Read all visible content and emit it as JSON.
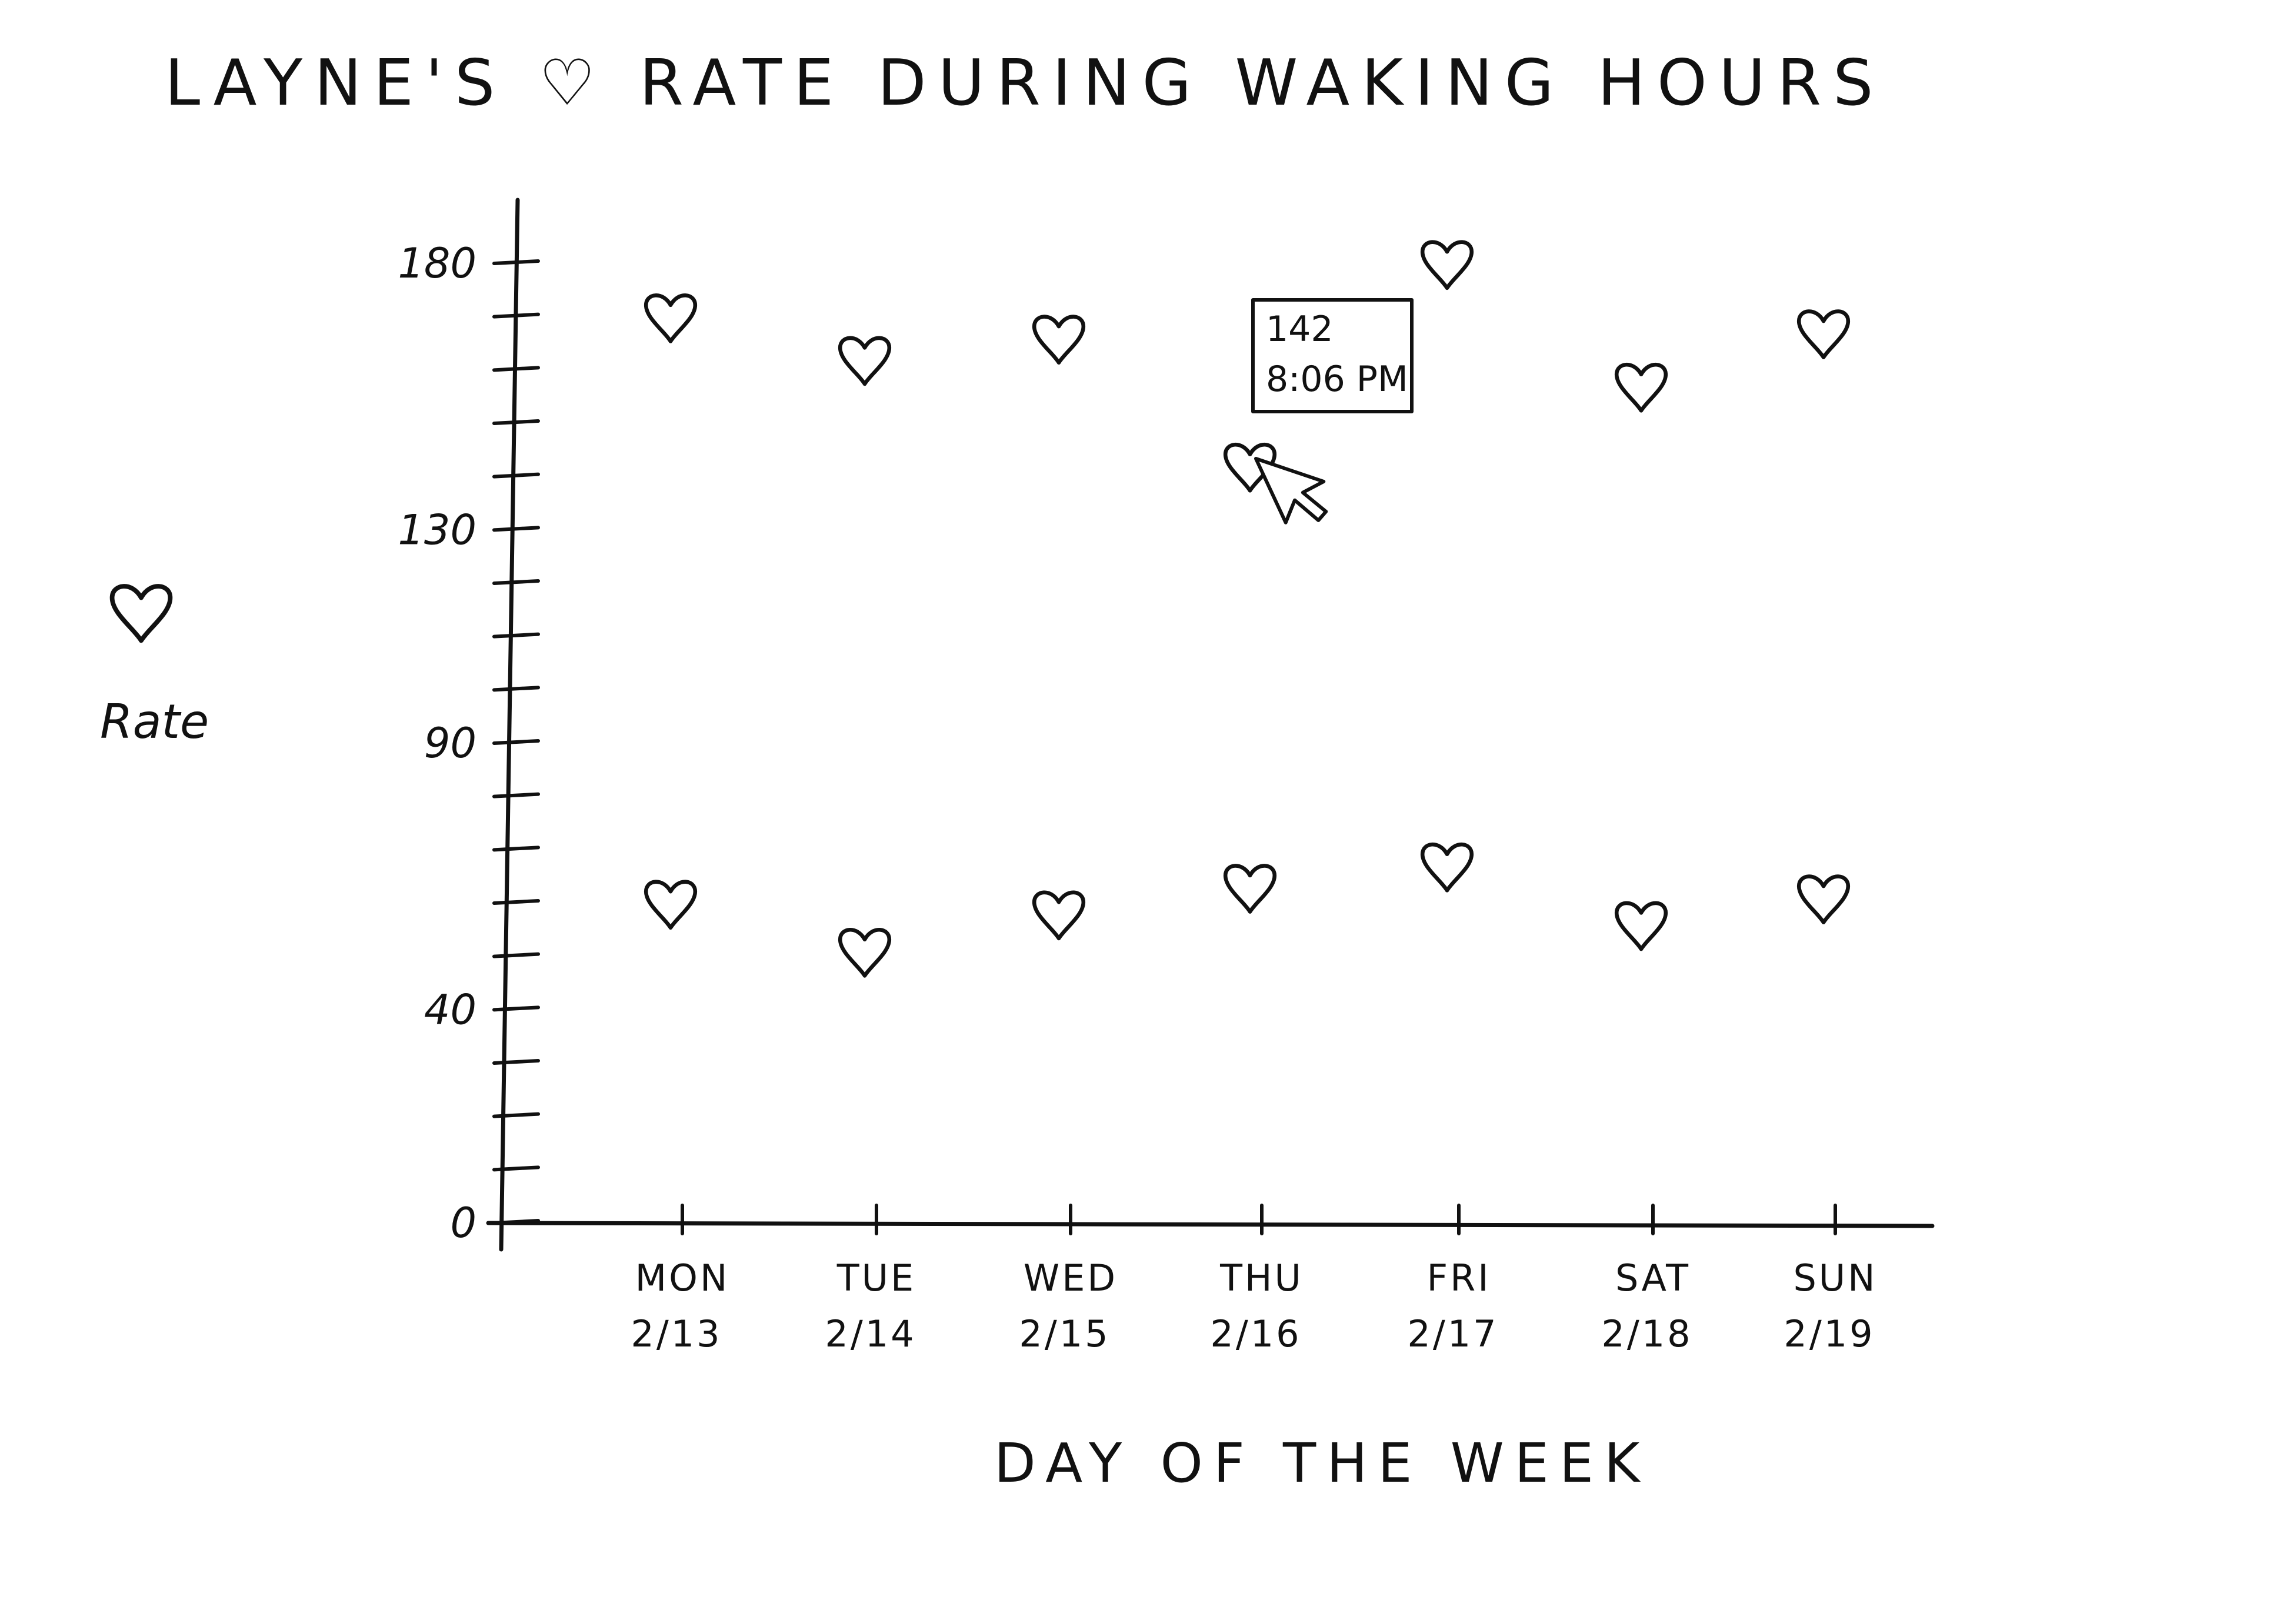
{
  "chart_data": {
    "type": "scatter",
    "title": "LAYNE'S ♡ RATE DURING WAKING HOURS",
    "xlabel": "DAY OF THE WEEK",
    "ylabel_icon": "heart-icon",
    "ylabel": "Rate",
    "ylim": [
      0,
      180
    ],
    "yticks": [
      0,
      40,
      90,
      130,
      180
    ],
    "grid": false,
    "legend": "none",
    "marker": "heart-icon",
    "ink_color": "#111111",
    "categories": [
      {
        "day": "MON",
        "date": "2/13"
      },
      {
        "day": "TUE",
        "date": "2/14"
      },
      {
        "day": "WED",
        "date": "2/15"
      },
      {
        "day": "THU",
        "date": "2/16"
      },
      {
        "day": "FRI",
        "date": "2/17"
      },
      {
        "day": "SAT",
        "date": "2/18"
      },
      {
        "day": "SUN",
        "date": "2/19"
      }
    ],
    "series": [
      {
        "values": [
          170,
          162,
          166,
          142,
          180,
          157,
          167
        ]
      },
      {
        "values": [
          60,
          51,
          58,
          63,
          67,
          56,
          61
        ]
      }
    ],
    "tooltip": {
      "day": "THU",
      "value": "142",
      "time": "8:06 PM"
    }
  }
}
